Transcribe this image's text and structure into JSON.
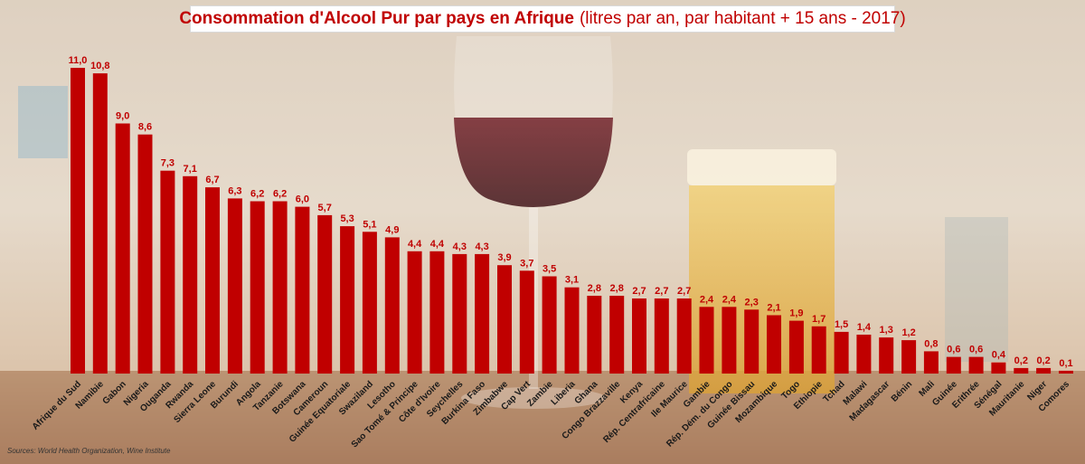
{
  "chart_data": {
    "type": "bar",
    "title": "Consommation d'Alcool Pur par pays en Afrique",
    "subtitle": "(litres par an, par habitant + 15 ans - 2017)",
    "xlabel": "",
    "ylabel": "",
    "ylim": [
      0,
      11.5
    ],
    "grid": false,
    "bar_color": "#c00000",
    "categories": [
      "Afrique du Sud",
      "Namibie",
      "Gabon",
      "Nigeria",
      "Ouganda",
      "Rwanda",
      "Sierra Leone",
      "Burundi",
      "Angola",
      "Tanzanie",
      "Botswana",
      "Cameroun",
      "Guinée Equatoriale",
      "Swaziland",
      "Lesotho",
      "Sao Tomé & Principe",
      "Côte d'Ivoire",
      "Seychelles",
      "Burkina Faso",
      "Zimbabwe",
      "Cap Vert",
      "Zambie",
      "Liberia",
      "Ghana",
      "Congo Brazzaville",
      "Kenya",
      "Rép. Centrafricaine",
      "Ile Maurice",
      "Gambie",
      "Rép. Dém. du Congo",
      "Guinée Bissau",
      "Mozambique",
      "Togo",
      "Ethiopie",
      "Tchad",
      "Malawi",
      "Madagascar",
      "Bénin",
      "Mali",
      "Guinée",
      "Erithrée",
      "Sénégal",
      "Mauritanie",
      "Niger",
      "Comores"
    ],
    "values": [
      11.0,
      10.8,
      9.0,
      8.6,
      7.3,
      7.1,
      6.7,
      6.3,
      6.2,
      6.2,
      6.0,
      5.7,
      5.3,
      5.1,
      4.9,
      4.4,
      4.4,
      4.3,
      4.3,
      3.9,
      3.7,
      3.5,
      3.1,
      2.8,
      2.8,
      2.7,
      2.7,
      2.7,
      2.4,
      2.4,
      2.3,
      2.1,
      1.9,
      1.7,
      1.5,
      1.4,
      1.3,
      1.2,
      0.8,
      0.6,
      0.6,
      0.4,
      0.2,
      0.2,
      0.1
    ],
    "value_labels": [
      "11,0",
      "10,8",
      "9,0",
      "8,6",
      "7,3",
      "7,1",
      "6,7",
      "6,3",
      "6,2",
      "6,2",
      "6,0",
      "5,7",
      "5,3",
      "5,1",
      "4,9",
      "4,4",
      "4,4",
      "4,3",
      "4,3",
      "3,9",
      "3,7",
      "3,5",
      "3,1",
      "2,8",
      "2,8",
      "2,7",
      "2,7",
      "2,7",
      "2,4",
      "2,4",
      "2,3",
      "2,1",
      "1,9",
      "1,7",
      "1,5",
      "1,4",
      "1,3",
      "1,2",
      "0,8",
      "0,6",
      "0,6",
      "0,4",
      "0,2",
      "0,2",
      "0,1"
    ]
  },
  "source": "Sources: World Health Organization, Wine Institute"
}
